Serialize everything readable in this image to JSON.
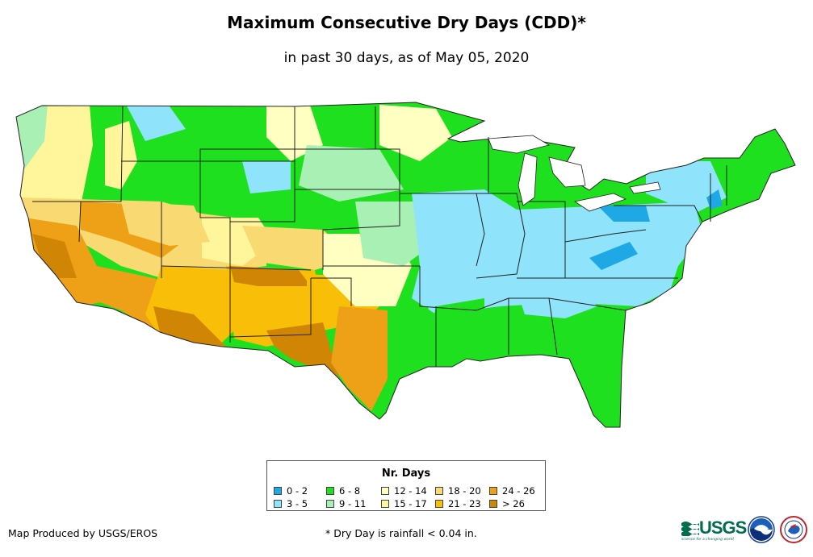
{
  "title": "Maximum Consecutive Dry Days (CDD)*",
  "subtitle": "in past 30 days, as of May 05, 2020",
  "legend": {
    "title": "Nr. Days",
    "items": [
      {
        "label": "0 - 2",
        "color": "#1fa8e6"
      },
      {
        "label": "3 - 5",
        "color": "#8fe3fb"
      },
      {
        "label": "6 - 8",
        "color": "#1ee01e"
      },
      {
        "label": "9 - 11",
        "color": "#a9f0b4"
      },
      {
        "label": "12 - 14",
        "color": "#ffffc2"
      },
      {
        "label": "15 - 17",
        "color": "#fff59a"
      },
      {
        "label": "18 - 20",
        "color": "#f9da72"
      },
      {
        "label": "21 - 23",
        "color": "#f9be07"
      },
      {
        "label": "24 - 26",
        "color": "#eea017"
      },
      {
        "label": "> 26",
        "color": "#d18505"
      }
    ]
  },
  "credit": "Map Produced by USGS/EROS",
  "footnote": "* Dry Day is rainfall < 0.04 in.",
  "logos": {
    "usgs": "USGS",
    "usgs_tagline": "science for a changing world",
    "noaa": "noaa-logo",
    "nws": "national-weather-service-logo"
  }
}
